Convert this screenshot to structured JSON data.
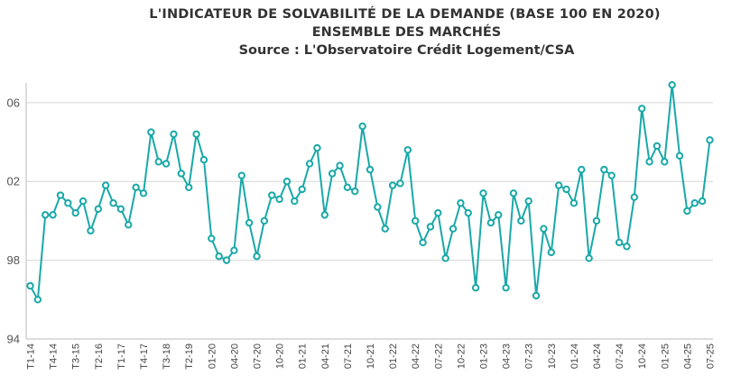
{
  "chart_data": {
    "type": "line",
    "title": "L'INDICATEUR DE SOLVABILITÉ DE LA DEMANDE (BASE 100 EN 2020)",
    "subtitle": "ENSEMBLE DES MARCHÉS",
    "source": "Source : L'Observatoire Crédit Logement/CSA",
    "y_tick_labels": [
      "94",
      "98",
      "02",
      "06"
    ],
    "ylim": [
      94,
      107
    ],
    "grid": true,
    "color": "#1aa8a8",
    "x_tick_labels": [
      "T1-14",
      "T4-14",
      "T3-15",
      "T2-16",
      "T1-17",
      "T4-17",
      "T3-18",
      "T2-19",
      "01-20",
      "04-20",
      "07-20",
      "10-20",
      "01-21",
      "04-21",
      "07-21",
      "10-21",
      "01-22",
      "04-22",
      "07-22",
      "10-22",
      "01-23",
      "04-23",
      "07-23",
      "10-23",
      "01-24",
      "04-24",
      "07-24",
      "10-24",
      "01-25",
      "04-25",
      "07-25"
    ],
    "values": [
      96.7,
      96.0,
      100.3,
      100.3,
      101.3,
      100.9,
      100.4,
      101.0,
      99.5,
      100.6,
      101.8,
      100.9,
      100.6,
      99.8,
      101.7,
      101.4,
      104.5,
      103.0,
      102.9,
      104.4,
      102.4,
      101.7,
      104.4,
      103.1,
      99.1,
      98.2,
      98.0,
      98.5,
      102.3,
      99.9,
      98.2,
      100.0,
      101.3,
      101.1,
      102.0,
      101.0,
      101.6,
      102.9,
      103.7,
      100.3,
      102.4,
      102.8,
      101.7,
      101.5,
      104.8,
      102.6,
      100.7,
      99.6,
      101.8,
      101.9,
      103.6,
      100.0,
      98.9,
      99.7,
      100.4,
      98.1,
      99.6,
      100.9,
      100.4,
      96.6,
      101.4,
      99.9,
      100.3,
      96.6,
      101.4,
      100.0,
      101.0,
      96.2,
      99.6,
      98.4,
      101.8,
      101.6,
      100.9,
      102.6,
      98.1,
      100.0,
      102.6,
      102.3,
      98.9,
      98.7,
      101.2,
      105.7,
      103.0,
      103.8,
      103.0,
      106.9,
      103.3,
      100.5,
      100.9,
      101.0,
      104.1
    ]
  }
}
